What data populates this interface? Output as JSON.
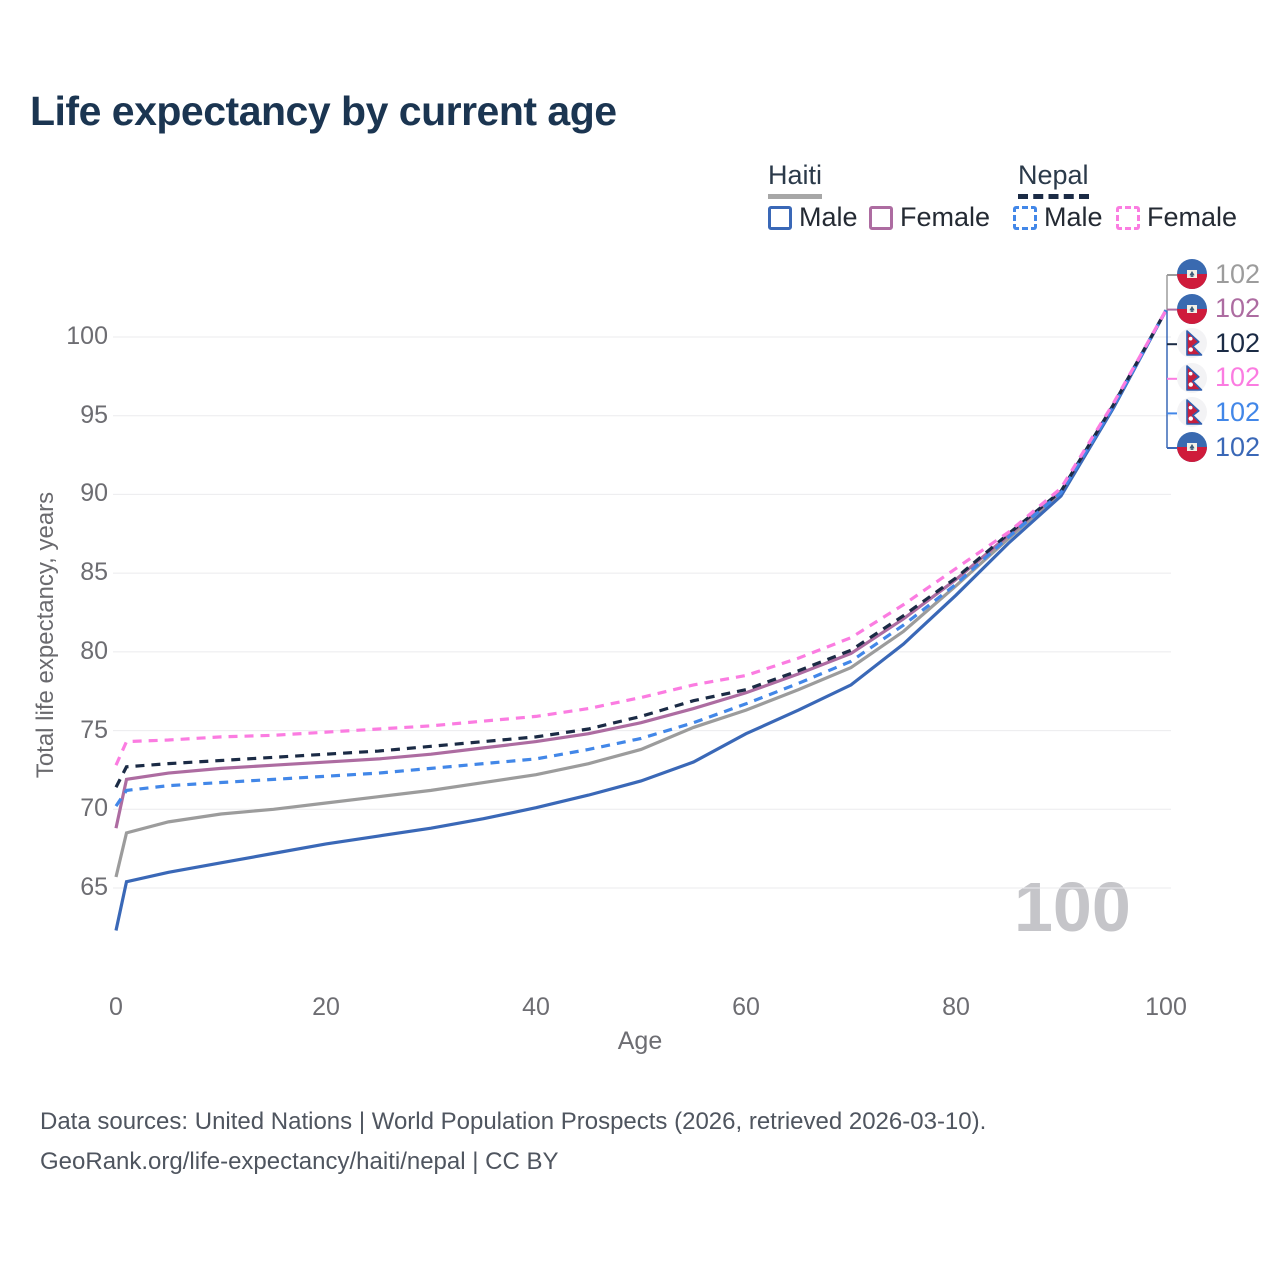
{
  "title": "Life expectancy by current age",
  "legend": {
    "position": "top-right",
    "groups": [
      {
        "name": "Haiti",
        "underline": {
          "color": "#a7a7a7",
          "style": "solid"
        },
        "items": [
          {
            "label": "Male",
            "color": "#3a68b7",
            "style": "solid"
          },
          {
            "label": "Female",
            "color": "#ad6ca1",
            "style": "solid"
          }
        ]
      },
      {
        "name": "Nepal",
        "underline": {
          "color": "#1b2b45",
          "style": "dashed"
        },
        "items": [
          {
            "label": "Male",
            "color": "#4287e8",
            "style": "dashed"
          },
          {
            "label": "Female",
            "color": "#fb7ce1",
            "style": "dashed"
          }
        ]
      }
    ]
  },
  "chart_data": {
    "type": "line",
    "title": "Life expectancy by current age",
    "xlabel": "Age",
    "ylabel": "Total life expectancy, years",
    "xlim": [
      0,
      100
    ],
    "ylim": [
      62,
      102.5
    ],
    "xticks": [
      0,
      20,
      40,
      60,
      80,
      100
    ],
    "yticks": [
      65,
      70,
      75,
      80,
      85,
      90,
      95,
      100
    ],
    "grid": true,
    "legend_position": "top-right",
    "watermark": "100",
    "x": [
      0,
      1,
      5,
      10,
      15,
      20,
      25,
      30,
      35,
      40,
      45,
      50,
      55,
      60,
      65,
      70,
      75,
      80,
      85,
      90,
      95,
      100
    ],
    "series": [
      {
        "id": "haiti-total",
        "name": "Haiti — Total",
        "country": "Haiti",
        "sex": "Total",
        "color": "#9c9c9c",
        "style": "solid",
        "flag": "haiti",
        "end_label": "102",
        "end_row": 0,
        "values": [
          65.7,
          68.5,
          69.2,
          69.7,
          70.0,
          70.4,
          70.8,
          71.2,
          71.7,
          72.2,
          72.9,
          73.8,
          75.2,
          76.3,
          77.6,
          79.0,
          81.3,
          84.2,
          87.2,
          90.1,
          95.6,
          101.7
        ]
      },
      {
        "id": "haiti-male",
        "name": "Haiti — Male",
        "country": "Haiti",
        "sex": "Male",
        "color": "#3a68b7",
        "style": "solid",
        "flag": "haiti",
        "end_label": "102",
        "end_row": 5,
        "values": [
          62.3,
          65.4,
          66.0,
          66.6,
          67.2,
          67.8,
          68.3,
          68.8,
          69.4,
          70.1,
          70.9,
          71.8,
          73.0,
          74.8,
          76.3,
          77.9,
          80.5,
          83.6,
          86.9,
          89.9,
          95.5,
          101.7
        ]
      },
      {
        "id": "haiti-female",
        "name": "Haiti — Female",
        "country": "Haiti",
        "sex": "Female",
        "color": "#ad6ca1",
        "style": "solid",
        "flag": "haiti",
        "end_label": "102",
        "end_row": 1,
        "values": [
          68.8,
          71.9,
          72.3,
          72.6,
          72.8,
          73.0,
          73.2,
          73.5,
          73.9,
          74.3,
          74.8,
          75.5,
          76.4,
          77.4,
          78.6,
          79.9,
          82.1,
          84.6,
          87.4,
          90.2,
          95.7,
          101.7
        ]
      },
      {
        "id": "nepal-total",
        "name": "Nepal — Total",
        "country": "Nepal",
        "sex": "Total",
        "color": "#1b2b45",
        "style": "dashed",
        "flag": "nepal",
        "end_label": "102",
        "end_row": 2,
        "values": [
          71.4,
          72.7,
          72.9,
          73.1,
          73.3,
          73.5,
          73.7,
          74.0,
          74.3,
          74.6,
          75.1,
          75.9,
          76.9,
          77.6,
          78.8,
          80.1,
          82.3,
          84.7,
          87.5,
          90.2,
          95.7,
          101.7
        ]
      },
      {
        "id": "nepal-male",
        "name": "Nepal — Male",
        "country": "Nepal",
        "sex": "Male",
        "color": "#4287e8",
        "style": "dashed",
        "flag": "nepal",
        "end_label": "102",
        "end_row": 4,
        "values": [
          70.2,
          71.2,
          71.5,
          71.7,
          71.9,
          72.1,
          72.3,
          72.6,
          72.9,
          73.2,
          73.8,
          74.5,
          75.5,
          76.7,
          78.0,
          79.4,
          81.7,
          84.3,
          87.3,
          90.1,
          95.6,
          101.7
        ]
      },
      {
        "id": "nepal-female",
        "name": "Nepal — Female",
        "country": "Nepal",
        "sex": "Female",
        "color": "#fb7ce1",
        "style": "dashed",
        "flag": "nepal",
        "end_label": "102",
        "end_row": 3,
        "values": [
          72.8,
          74.3,
          74.4,
          74.6,
          74.7,
          74.9,
          75.1,
          75.3,
          75.6,
          75.9,
          76.4,
          77.1,
          77.9,
          78.5,
          79.6,
          80.9,
          83.0,
          85.3,
          87.6,
          90.4,
          95.8,
          101.7
        ]
      }
    ]
  },
  "colors": {
    "title": "#1b3551",
    "grid": "#ebebee",
    "tick_text": "#6d6d72",
    "watermark": "#c5c5c9",
    "haiti_flag_blue": "#3a6ab0",
    "haiti_flag_red": "#cf1b3b",
    "nepal_flag_crimson": "#c51f3e",
    "nepal_flag_border": "#2f5fb0"
  },
  "footer": {
    "line1": "Data sources: United Nations | World Population Prospects (2026, retrieved 2026-03-10).",
    "line2": "GeoRank.org/life-expectancy/haiti/nepal | CC BY"
  }
}
